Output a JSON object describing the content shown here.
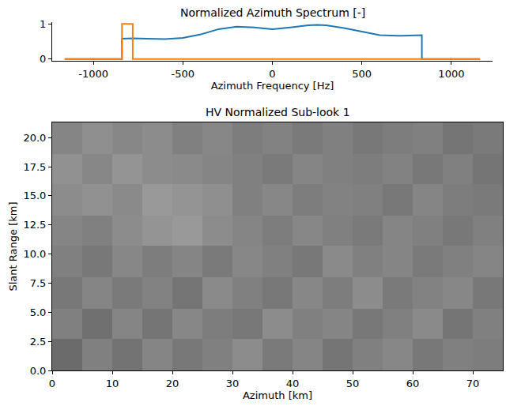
{
  "chart_data": [
    {
      "type": "line",
      "title": "Normalized Azimuth Spectrum [-]",
      "x_label": "Azimuth Frequency [Hz]",
      "xlim": [
        -1230,
        1230
      ],
      "xticks": [
        -1000,
        -500,
        0,
        500,
        1000
      ],
      "ylim": [
        -0.05,
        1.05
      ],
      "yticks": [
        0,
        1
      ],
      "grid": false,
      "series": [
        {
          "color": "#1f77b4",
          "x": [
            -1160,
            -840,
            -840,
            -780,
            -700,
            -600,
            -500,
            -400,
            -300,
            -200,
            -100,
            0,
            100,
            200,
            250,
            300,
            400,
            500,
            600,
            700,
            835,
            835,
            1160
          ],
          "values": [
            0,
            0,
            0.58,
            0.59,
            0.58,
            0.57,
            0.6,
            0.7,
            0.85,
            0.92,
            0.9,
            0.85,
            0.9,
            0.96,
            0.97,
            0.96,
            0.88,
            0.78,
            0.68,
            0.66,
            0.68,
            0,
            0
          ]
        },
        {
          "color": "#ff7f0e",
          "x": [
            -1160,
            -840,
            -840,
            -780,
            -780,
            1160
          ],
          "values": [
            0,
            0,
            1,
            1,
            0,
            0
          ]
        }
      ]
    },
    {
      "type": "heatmap",
      "title": "HV Normalized Sub-look 1",
      "x_label": "Azimuth [km]",
      "y_label": "Slant Range [km]",
      "xlim": [
        0,
        75
      ],
      "xticks": [
        {
          "value": 0,
          "label": "0"
        },
        10,
        20,
        30,
        40,
        50,
        60,
        70
      ],
      "ylim": [
        0,
        21.3
      ],
      "yticks": [
        {
          "value": 0,
          "label": "0.0"
        },
        2.5,
        {
          "value": 5,
          "label": "5.0"
        },
        7.5,
        {
          "value": 10,
          "label": "10.0"
        },
        12.5,
        {
          "value": 15,
          "label": "15.0"
        },
        17.5,
        {
          "value": 20,
          "label": "20.0"
        }
      ],
      "x_edges": [
        0,
        5,
        10,
        15,
        20,
        25,
        30,
        35,
        40,
        45,
        50,
        55,
        60,
        65,
        70,
        75
      ],
      "y_edges": [
        0,
        2.7,
        5.3,
        8,
        10.7,
        13.3,
        16,
        18.6,
        21.3
      ],
      "zlim": [
        0,
        1
      ],
      "cells": [
        [
          0.42,
          0.5,
          0.45,
          0.52,
          0.47,
          0.5,
          0.55,
          0.48,
          0.52,
          0.46,
          0.5,
          0.53,
          0.47,
          0.5,
          0.49
        ],
        [
          0.5,
          0.44,
          0.52,
          0.46,
          0.53,
          0.49,
          0.47,
          0.55,
          0.5,
          0.52,
          0.47,
          0.5,
          0.54,
          0.46,
          0.5
        ],
        [
          0.47,
          0.52,
          0.48,
          0.51,
          0.46,
          0.54,
          0.5,
          0.47,
          0.53,
          0.49,
          0.55,
          0.48,
          0.51,
          0.53,
          0.47
        ],
        [
          0.5,
          0.47,
          0.53,
          0.49,
          0.52,
          0.48,
          0.53,
          0.5,
          0.47,
          0.54,
          0.5,
          0.52,
          0.48,
          0.5,
          0.52
        ],
        [
          0.52,
          0.5,
          0.55,
          0.58,
          0.6,
          0.55,
          0.52,
          0.49,
          0.53,
          0.5,
          0.48,
          0.52,
          0.5,
          0.47,
          0.5
        ],
        [
          0.55,
          0.57,
          0.54,
          0.6,
          0.58,
          0.56,
          0.5,
          0.53,
          0.49,
          0.51,
          0.5,
          0.47,
          0.52,
          0.49,
          0.48
        ],
        [
          0.57,
          0.53,
          0.58,
          0.55,
          0.54,
          0.52,
          0.5,
          0.48,
          0.52,
          0.5,
          0.49,
          0.51,
          0.47,
          0.5,
          0.46
        ],
        [
          0.52,
          0.56,
          0.53,
          0.55,
          0.5,
          0.53,
          0.49,
          0.51,
          0.48,
          0.5,
          0.47,
          0.49,
          0.5,
          0.46,
          0.48
        ]
      ]
    }
  ]
}
